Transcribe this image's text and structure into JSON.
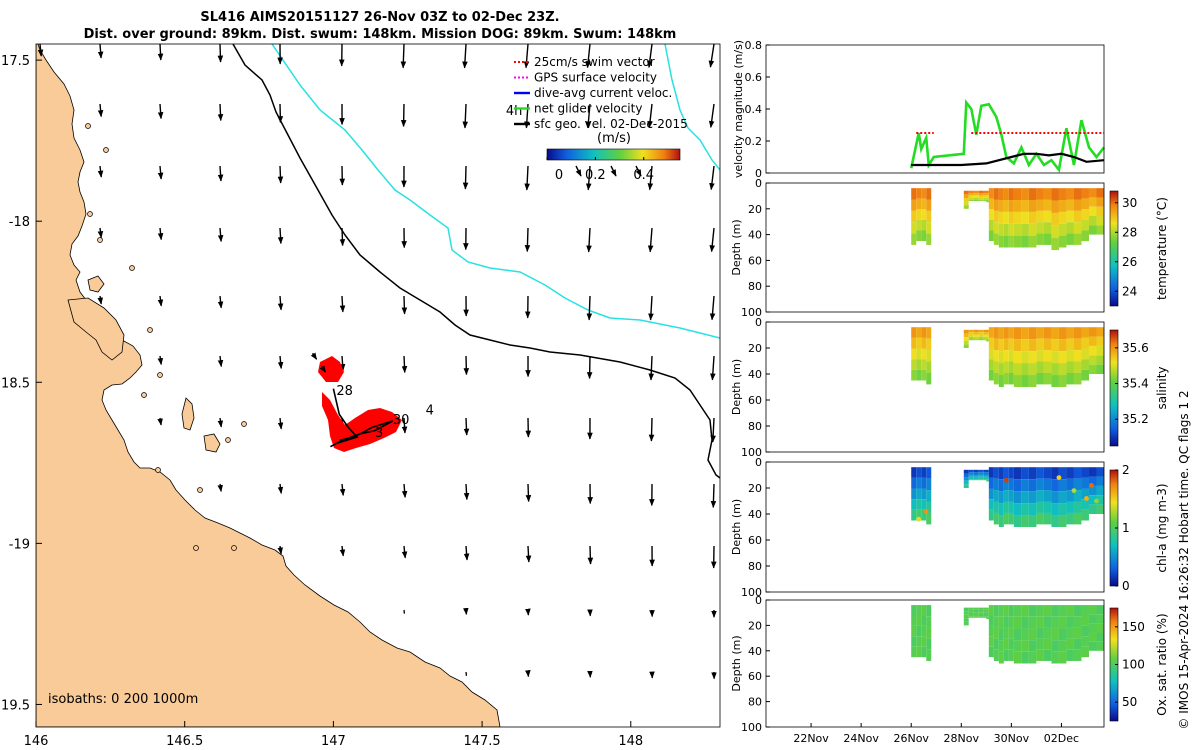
{
  "title_line1": "SL416 AIMS20151127 26-Nov 03Z to 02-Dec 23Z.",
  "title_line2": "Dist. over ground: 89km. Dist. swum: 148km. Mission DOG: 89km. Swum: 148km",
  "credit": "© IMOS 15-Apr-2024 16:26:32 Hobart time. QC flags 1  2",
  "colors": {
    "land": "#f9cb98",
    "sea": "#ffffff",
    "isobath_0": "#000000",
    "isobath_200": "#000000",
    "isobath_1000": "#29e1e1",
    "swim_vector": "#ff0000",
    "gps_velocity": "#ff00ff",
    "dive_avg": "#0000ff",
    "net_velocity": "#22dd22",
    "geo_velocity": "#000000",
    "track": "#ff0000"
  },
  "chart_data": [
    {
      "type": "map",
      "name": "track-map",
      "xlim": [
        146,
        148.3
      ],
      "ylim": [
        -19.57,
        -17.45
      ],
      "x_ticks": [
        146,
        146.5,
        147,
        147.5,
        148
      ],
      "x_tick_labels": [
        "146",
        "146.5",
        "147",
        "147.5",
        "148"
      ],
      "y_ticks": [
        -17.5,
        -18,
        -18.5,
        -19,
        -19.5
      ],
      "y_tick_labels": [
        "17.5",
        "-18",
        "18.5",
        "-19",
        "19.5"
      ],
      "isobaths_label": "isobaths: 0   200  1000m",
      "legend": [
        {
          "label": "25cm/s swim vector",
          "color": "#ff0000",
          "marker": "dotted"
        },
        {
          "label": "GPS surface velocity",
          "color": "#ff00ff",
          "marker": "dotted"
        },
        {
          "label": "dive-avg current veloc.",
          "color": "#0000ff",
          "marker": "arrow"
        },
        {
          "label": "net glider velocity",
          "color": "#22dd22",
          "marker": "arrow"
        },
        {
          "label": "sfc geo. vel. 02-Dec-2015",
          "color": "#000000",
          "marker": "arrow"
        }
      ],
      "colorbar": {
        "title": "(m/s)",
        "range": [
          0,
          0.55
        ],
        "tick_labels": [
          "0",
          "0.2",
          "0.4"
        ],
        "tick_values": [
          0,
          0.2,
          0.4
        ]
      },
      "annotations": [
        {
          "text": "4h",
          "lon": 147.58,
          "lat": -17.67
        },
        {
          "text": "28",
          "lon": 147.01,
          "lat": -18.54
        },
        {
          "text": "30",
          "lon": 147.2,
          "lat": -18.63
        },
        {
          "text": "4",
          "lon": 147.31,
          "lat": -18.6
        },
        {
          "text": "3",
          "lon": 147.14,
          "lat": -18.67
        }
      ],
      "track": [
        [
          147.0,
          -18.52
        ],
        [
          147.02,
          -18.6
        ],
        [
          147.05,
          -18.64
        ],
        [
          147.08,
          -18.67
        ],
        [
          147.01,
          -18.69
        ],
        [
          146.99,
          -18.7
        ],
        [
          147.03,
          -18.68
        ],
        [
          147.09,
          -18.66
        ],
        [
          147.14,
          -18.65
        ],
        [
          147.18,
          -18.63
        ],
        [
          147.2,
          -18.62
        ],
        [
          147.13,
          -18.64
        ],
        [
          147.07,
          -18.67
        ],
        [
          147.02,
          -18.68
        ]
      ],
      "track_blob": [
        [
          146.93,
          -18.41
        ],
        [
          146.96,
          -18.45
        ]
      ]
    },
    {
      "type": "line",
      "name": "velocity-panel",
      "ylabel": "velocity magnitude (m/s)",
      "ylim": [
        0,
        0.8
      ],
      "y_ticks": [
        0,
        0.2,
        0.4,
        0.6,
        0.8
      ],
      "y_tick_labels": [
        "0",
        "0.2",
        "0.4",
        "0.6",
        "0.8"
      ],
      "xlim": [
        20.2,
        33.7
      ],
      "series": [
        {
          "name": "net glider velocity",
          "color": "#22dd22",
          "x": [
            26.0,
            26.3,
            26.4,
            26.6,
            26.7,
            26.9,
            28.1,
            28.2,
            28.4,
            28.6,
            28.8,
            29.1,
            29.4,
            29.6,
            29.8,
            30.1,
            30.4,
            30.7,
            31.0,
            31.3,
            31.6,
            31.9,
            32.2,
            32.5,
            32.8,
            33.1,
            33.4,
            33.7
          ],
          "values": [
            0.03,
            0.25,
            0.15,
            0.22,
            0.05,
            0.1,
            0.12,
            0.44,
            0.4,
            0.24,
            0.42,
            0.43,
            0.35,
            0.24,
            0.1,
            0.06,
            0.16,
            0.05,
            0.12,
            0.05,
            0.08,
            0.02,
            0.28,
            0.05,
            0.33,
            0.16,
            0.1,
            0.16
          ]
        },
        {
          "name": "sfc geo. vel.",
          "color": "#000000",
          "x": [
            26.0,
            28.0,
            29.0,
            30.0,
            30.5,
            31.0,
            31.5,
            32.0,
            32.5,
            33.0,
            33.7
          ],
          "values": [
            0.05,
            0.05,
            0.06,
            0.1,
            0.12,
            0.12,
            0.11,
            0.12,
            0.1,
            0.07,
            0.08
          ]
        },
        {
          "name": "25cm/s swim vector",
          "color": "#ff0000",
          "x": [
            26.2,
            26.9,
            28.4,
            33.7
          ],
          "values": [
            0.25,
            0.25,
            0.25,
            0.25
          ]
        }
      ]
    },
    {
      "type": "scatter-section",
      "name": "temperature-section",
      "ylabel": "Depth (m)",
      "ylim": [
        100,
        0
      ],
      "y_ticks": [
        0,
        20,
        40,
        60,
        80,
        100
      ],
      "y_tick_labels": [
        "0",
        "20",
        "40",
        "60",
        "80",
        "100"
      ],
      "xlim": [
        20.2,
        33.7
      ],
      "colorbar": {
        "label": "temperature (°C)",
        "range": [
          23,
          30.8
        ],
        "tick_values": [
          24,
          26,
          28,
          30
        ],
        "tick_labels": [
          "24",
          "26",
          "28",
          "30"
        ],
        "colormap": "parula"
      },
      "profiles": [
        {
          "x": [
            26.0,
            26.2,
            26.4,
            26.6,
            26.8
          ],
          "depth": [
            50,
            48,
            45,
            50,
            48
          ],
          "value": 28.5
        },
        {
          "x": [
            28.1,
            28.3,
            28.5,
            28.7,
            28.9,
            29.1,
            29.3,
            29.5,
            29.7,
            29.9,
            30.1,
            30.4,
            30.7,
            31.0,
            31.3,
            31.6,
            31.9,
            32.2,
            32.5,
            32.8,
            33.1,
            33.4,
            33.7
          ],
          "depth": [
            20,
            20,
            15,
            15,
            15,
            45,
            48,
            52,
            50,
            50,
            50,
            50,
            52,
            50,
            48,
            52,
            55,
            50,
            48,
            50,
            45,
            40,
            40
          ],
          "value": 28.3
        }
      ]
    },
    {
      "type": "scatter-section",
      "name": "salinity-section",
      "ylabel": "Depth (m)",
      "ylim": [
        100,
        0
      ],
      "y_ticks": [
        0,
        20,
        40,
        60,
        80,
        100
      ],
      "y_tick_labels": [
        "0",
        "20",
        "40",
        "60",
        "80",
        "100"
      ],
      "xlim": [
        20.2,
        33.7
      ],
      "colorbar": {
        "label": "salinity",
        "range": [
          35.05,
          35.7
        ],
        "tick_values": [
          35.2,
          35.4,
          35.6
        ],
        "tick_labels": [
          "35.2",
          "35.4",
          "35.6"
        ],
        "colormap": "parula"
      },
      "profiles": [
        {
          "x": [
            26.0,
            26.2,
            26.4,
            26.6,
            26.8
          ],
          "depth": [
            48,
            45,
            45,
            50,
            48
          ],
          "value": 35.45
        },
        {
          "x": [
            28.1,
            28.3,
            28.5,
            28.7,
            28.9,
            29.1,
            29.3,
            29.5,
            29.7,
            29.9,
            30.1,
            30.4,
            30.7,
            31.0,
            31.3,
            31.6,
            31.9,
            32.2,
            32.5,
            32.8,
            33.1,
            33.4,
            33.7
          ],
          "depth": [
            20,
            20,
            15,
            15,
            15,
            45,
            48,
            50,
            50,
            48,
            50,
            50,
            52,
            50,
            48,
            50,
            52,
            50,
            48,
            48,
            45,
            40,
            40
          ],
          "value": 35.5
        }
      ]
    },
    {
      "type": "scatter-section",
      "name": "chla-section",
      "ylabel": "Depth (m)",
      "ylim": [
        100,
        0
      ],
      "y_ticks": [
        0,
        20,
        40,
        60,
        80,
        100
      ],
      "y_tick_labels": [
        "0",
        "20",
        "40",
        "60",
        "80",
        "100"
      ],
      "xlim": [
        20.2,
        33.7
      ],
      "colorbar": {
        "label": "chl-a (mg m-3)",
        "range": [
          0,
          2
        ],
        "tick_values": [
          0,
          1,
          2
        ],
        "tick_labels": [
          "0",
          "1",
          "2"
        ],
        "colormap": "parula"
      },
      "profiles": [
        {
          "x": [
            26.0,
            26.2,
            26.4,
            26.6,
            26.8
          ],
          "depth": [
            48,
            45,
            45,
            50,
            48
          ],
          "value": 0.3
        },
        {
          "x": [
            28.1,
            28.3,
            28.5,
            28.7,
            28.9,
            29.1,
            29.3,
            29.5,
            29.7,
            29.9,
            30.1,
            30.4,
            30.7,
            31.0,
            31.3,
            31.6,
            31.9,
            32.2,
            32.5,
            32.8,
            33.1,
            33.4,
            33.7
          ],
          "depth": [
            20,
            20,
            15,
            15,
            15,
            45,
            48,
            50,
            50,
            48,
            50,
            50,
            52,
            50,
            48,
            50,
            52,
            50,
            48,
            48,
            45,
            40,
            40
          ],
          "value": 0.2
        }
      ]
    },
    {
      "type": "scatter-section",
      "name": "oxygen-section",
      "ylabel": "Depth (m)",
      "ylim": [
        100,
        0
      ],
      "y_ticks": [
        0,
        20,
        40,
        60,
        80,
        100
      ],
      "y_tick_labels": [
        "0",
        "20",
        "40",
        "60",
        "80",
        "100"
      ],
      "xlim": [
        20.2,
        33.7
      ],
      "x_ticks": [
        22,
        24,
        26,
        28,
        30,
        32
      ],
      "x_tick_labels": [
        "22Nov",
        "24Nov",
        "26Nov",
        "28Nov",
        "30Nov",
        "02Dec"
      ],
      "colorbar": {
        "label": "Ox. sat. ratio (%)",
        "range": [
          25,
          175
        ],
        "tick_values": [
          50,
          100,
          150
        ],
        "tick_labels": [
          "50",
          "100",
          "150"
        ],
        "colormap": "parula"
      },
      "profiles": [
        {
          "x": [
            26.0,
            26.2,
            26.4,
            26.6,
            26.8
          ],
          "depth": [
            48,
            45,
            45,
            50,
            48
          ],
          "value": 100
        },
        {
          "x": [
            28.1,
            28.3,
            28.5,
            28.7,
            28.9,
            29.1,
            29.3,
            29.5,
            29.7,
            29.9,
            30.1,
            30.4,
            30.7,
            31.0,
            31.3,
            31.6,
            31.9,
            32.2,
            32.5,
            32.8,
            33.1,
            33.4,
            33.7
          ],
          "depth": [
            20,
            20,
            15,
            15,
            15,
            45,
            48,
            50,
            50,
            48,
            50,
            50,
            52,
            50,
            48,
            50,
            52,
            50,
            48,
            48,
            45,
            40,
            40
          ],
          "value": 100
        }
      ]
    }
  ]
}
